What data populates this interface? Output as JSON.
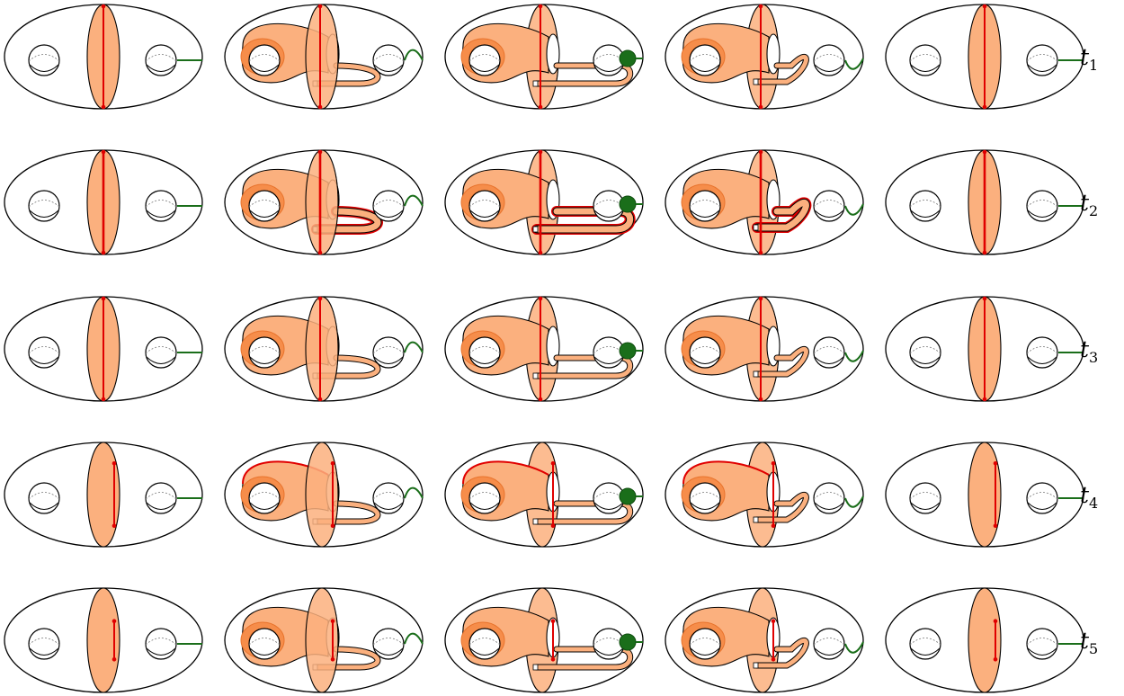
{
  "figure": {
    "rows": [
      {
        "label": "t",
        "sub": "1",
        "arc": 1
      },
      {
        "label": "t",
        "sub": "2",
        "arc": 1,
        "bold": true
      },
      {
        "label": "t",
        "sub": "3",
        "arc": 1
      },
      {
        "label": "t",
        "sub": "4",
        "arc": 0.62,
        "rimHighlight": true
      },
      {
        "label": "t",
        "sub": "5",
        "arc": 0.38
      }
    ],
    "columns": [
      "plain",
      "tube-back",
      "tube-through",
      "tube-front",
      "plain"
    ],
    "colors": {
      "outline": "#000000",
      "disk": "#fbb07e",
      "tube": "#f68d4a",
      "tubeDark": "#e8732c",
      "arc": "#e00000",
      "green": "#1a6e1a",
      "greenDark": "#0f4e0f"
    }
  }
}
